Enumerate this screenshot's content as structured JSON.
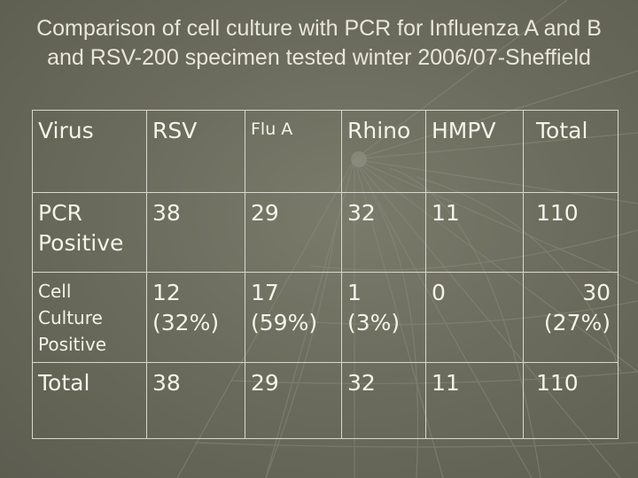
{
  "title": "Comparison of cell culture with PCR for Influenza A and B and RSV-200 specimen tested winter 2006/07-Sheffield",
  "headers": [
    "Virus",
    "RSV",
    "Flu A",
    "Rhino",
    "HMPV",
    "Total"
  ],
  "rows": [
    {
      "label": "PCR Positive",
      "cells": [
        "38",
        "29",
        "32",
        "11",
        "110"
      ]
    },
    {
      "label": [
        "Cell",
        "Culture",
        "Positive"
      ],
      "cells": [
        [
          "12",
          "(32%)"
        ],
        [
          "17",
          "(59%)"
        ],
        [
          "1",
          "(3%)"
        ],
        [
          "0",
          ""
        ],
        [
          "30",
          "(27%)"
        ]
      ]
    },
    {
      "label": "Total",
      "cells": [
        "38",
        "29",
        "32",
        "11",
        "110"
      ]
    }
  ]
}
